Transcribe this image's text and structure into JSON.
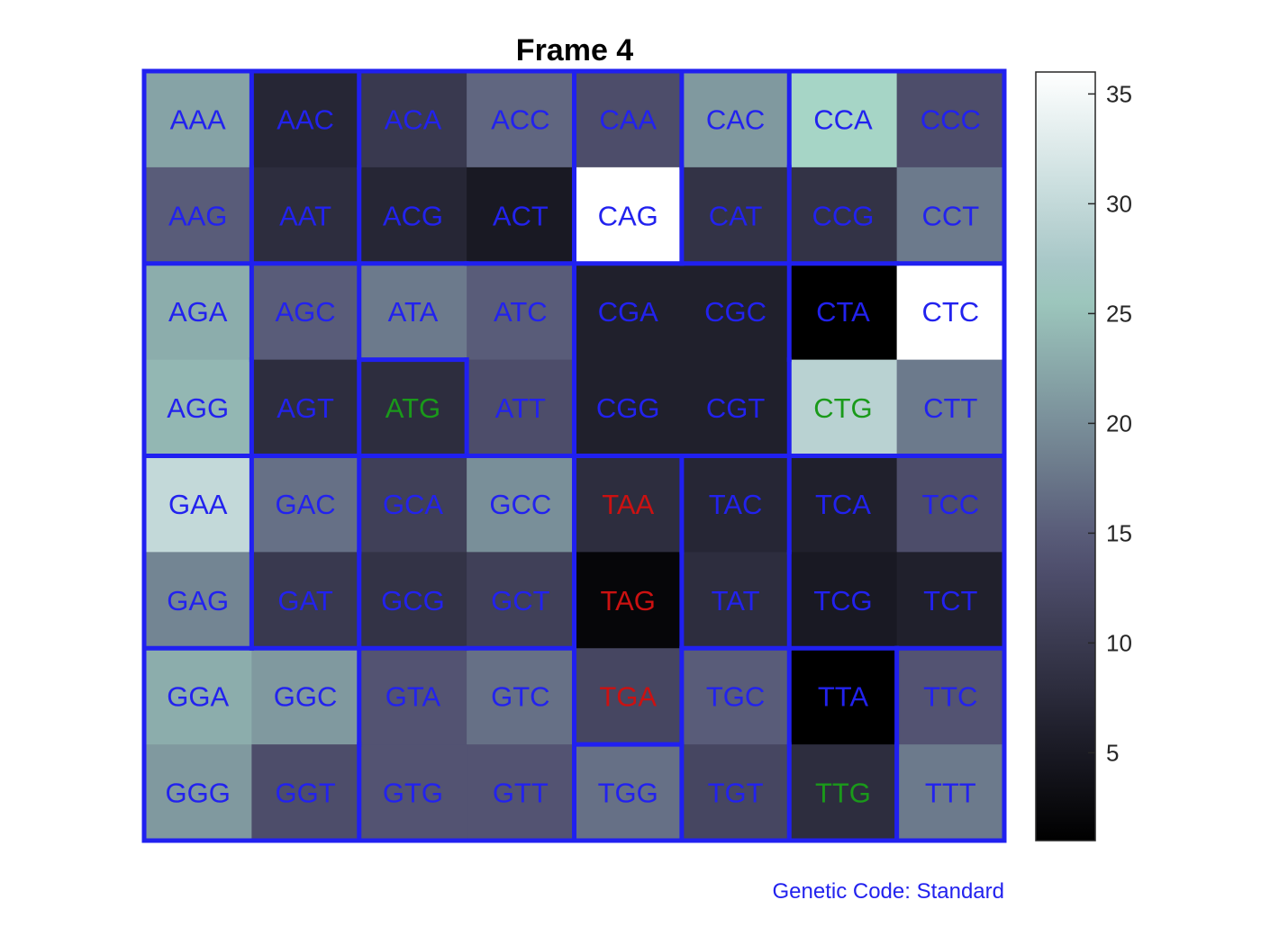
{
  "chart_data": {
    "type": "heatmap",
    "title": "Frame 4",
    "footnote": "Genetic Code: Standard",
    "rows": 8,
    "cols": 8,
    "cells": [
      [
        "AAA",
        "AAC",
        "ACA",
        "ACC",
        "CAA",
        "CAC",
        "CCA",
        "CCC"
      ],
      [
        "AAG",
        "AAT",
        "ACG",
        "ACT",
        "CAG",
        "CAT",
        "CCG",
        "CCT"
      ],
      [
        "AGA",
        "AGC",
        "ATA",
        "ATC",
        "CGA",
        "CGC",
        "CTA",
        "CTC"
      ],
      [
        "AGG",
        "AGT",
        "ATG",
        "ATT",
        "CGG",
        "CGT",
        "CTG",
        "CTT"
      ],
      [
        "GAA",
        "GAC",
        "GCA",
        "GCC",
        "TAA",
        "TAC",
        "TCA",
        "TCC"
      ],
      [
        "GAG",
        "GAT",
        "GCG",
        "GCT",
        "TAG",
        "TAT",
        "TCG",
        "TCT"
      ],
      [
        "GGA",
        "GGC",
        "GTA",
        "GTC",
        "TGA",
        "TGC",
        "TTA",
        "TTC"
      ],
      [
        "GGG",
        "GGT",
        "GTG",
        "GTT",
        "TGG",
        "TGT",
        "TTG",
        "TTT"
      ]
    ],
    "values": [
      [
        22,
        7,
        10,
        16,
        13,
        21,
        27,
        13
      ],
      [
        15,
        8,
        7,
        5,
        36,
        9,
        9,
        18
      ],
      [
        23,
        15,
        18,
        15,
        6,
        6,
        1,
        36
      ],
      [
        24,
        8,
        8,
        13,
        6,
        6,
        29,
        18
      ],
      [
        30,
        17,
        11,
        20,
        8,
        7,
        6,
        13
      ],
      [
        19,
        10,
        9,
        11,
        2,
        8,
        5,
        6
      ],
      [
        23,
        21,
        14,
        17,
        12,
        15,
        1,
        14
      ],
      [
        21,
        13,
        14,
        14,
        17,
        12,
        8,
        18
      ]
    ],
    "label_colors": {
      "start": "#1a9a1a",
      "stop": "#cc1111",
      "other": "#2222ee"
    },
    "start_codons": [
      "ATG",
      "CTG",
      "TTG"
    ],
    "stop_codons": [
      "TAA",
      "TAG",
      "TGA"
    ],
    "colorbar": {
      "range": [
        1,
        36
      ],
      "ticks": [
        "5",
        "10",
        "15",
        "20",
        "25",
        "30",
        "35"
      ],
      "colormap": "bone"
    },
    "border_color": "#2020f0"
  }
}
